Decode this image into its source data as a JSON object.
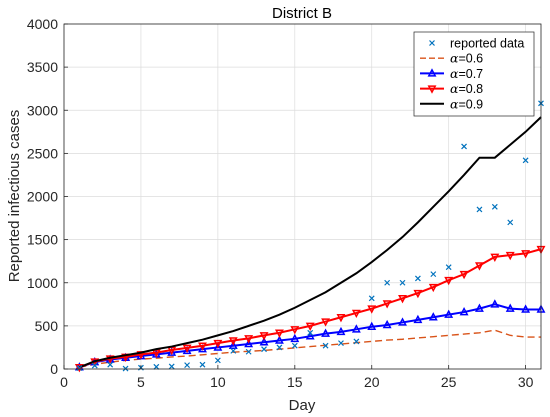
{
  "chart_data": {
    "type": "line",
    "title": "District B",
    "xlabel": "Day",
    "ylabel": "Reported infectious cases",
    "xlim": [
      0,
      31
    ],
    "ylim": [
      0,
      4000
    ],
    "xticks": [
      0,
      5,
      10,
      15,
      20,
      25,
      30
    ],
    "yticks": [
      0,
      500,
      1000,
      1500,
      2000,
      2500,
      3000,
      3500,
      4000
    ],
    "grid": true,
    "legend_position": "top-right",
    "series": [
      {
        "name": "reported data",
        "style": "markers",
        "marker": "x",
        "color": "#0072BD",
        "x": [
          1,
          2,
          3,
          4,
          5,
          6,
          7,
          8,
          9,
          10,
          11,
          12,
          13,
          14,
          15,
          16,
          17,
          18,
          19,
          20,
          21,
          22,
          23,
          24,
          25,
          26,
          27,
          28,
          29,
          30,
          31
        ],
        "y": [
          10,
          40,
          50,
          5,
          15,
          25,
          30,
          45,
          50,
          100,
          210,
          200,
          230,
          250,
          270,
          420,
          270,
          300,
          320,
          820,
          1000,
          1000,
          1050,
          1100,
          1180,
          2580,
          1850,
          1880,
          1700,
          2420,
          3080
        ]
      },
      {
        "name": "α=0.6",
        "style": "dashed",
        "color": "#D95319",
        "x": [
          1,
          2,
          3,
          4,
          5,
          6,
          7,
          8,
          9,
          10,
          11,
          12,
          13,
          14,
          15,
          16,
          17,
          18,
          19,
          20,
          21,
          22,
          23,
          24,
          25,
          26,
          27,
          28,
          29,
          30,
          31
        ],
        "y": [
          20,
          55,
          80,
          100,
          115,
          125,
          140,
          150,
          165,
          180,
          195,
          205,
          215,
          230,
          245,
          260,
          275,
          290,
          305,
          320,
          335,
          345,
          360,
          375,
          390,
          405,
          420,
          450,
          390,
          370,
          370
        ]
      },
      {
        "name": "α=0.7",
        "style": "line-markers",
        "marker": "triangle-up",
        "color": "#0000FF",
        "x": [
          1,
          2,
          3,
          4,
          5,
          6,
          7,
          8,
          9,
          10,
          11,
          12,
          13,
          14,
          15,
          16,
          17,
          18,
          19,
          20,
          21,
          22,
          23,
          24,
          25,
          26,
          27,
          28,
          29,
          30,
          31
        ],
        "y": [
          20,
          80,
          110,
          130,
          150,
          170,
          190,
          210,
          230,
          250,
          270,
          290,
          310,
          330,
          350,
          380,
          410,
          430,
          460,
          490,
          510,
          540,
          570,
          600,
          630,
          660,
          700,
          750,
          700,
          690,
          690
        ]
      },
      {
        "name": "α=0.8",
        "style": "line-markers",
        "marker": "triangle-down",
        "color": "#FF0000",
        "x": [
          1,
          2,
          3,
          4,
          5,
          6,
          7,
          8,
          9,
          10,
          11,
          12,
          13,
          14,
          15,
          16,
          17,
          18,
          19,
          20,
          21,
          22,
          23,
          24,
          25,
          26,
          27,
          28,
          29,
          30,
          31
        ],
        "y": [
          20,
          85,
          120,
          140,
          170,
          190,
          220,
          245,
          270,
          300,
          330,
          355,
          390,
          420,
          460,
          500,
          550,
          600,
          650,
          700,
          760,
          820,
          880,
          950,
          1030,
          1100,
          1200,
          1300,
          1320,
          1340,
          1390
        ]
      },
      {
        "name": "α=0.9",
        "style": "solid",
        "color": "#000000",
        "x": [
          1,
          2,
          3,
          4,
          5,
          6,
          7,
          8,
          9,
          10,
          11,
          12,
          13,
          14,
          15,
          16,
          17,
          18,
          19,
          20,
          21,
          22,
          23,
          24,
          25,
          26,
          27,
          28,
          29,
          30,
          31
        ],
        "y": [
          20,
          90,
          130,
          160,
          190,
          230,
          260,
          300,
          340,
          390,
          440,
          500,
          560,
          630,
          710,
          800,
          890,
          1000,
          1110,
          1240,
          1380,
          1530,
          1700,
          1880,
          2060,
          2250,
          2450,
          2450,
          2600,
          2750,
          2920
        ]
      }
    ]
  }
}
